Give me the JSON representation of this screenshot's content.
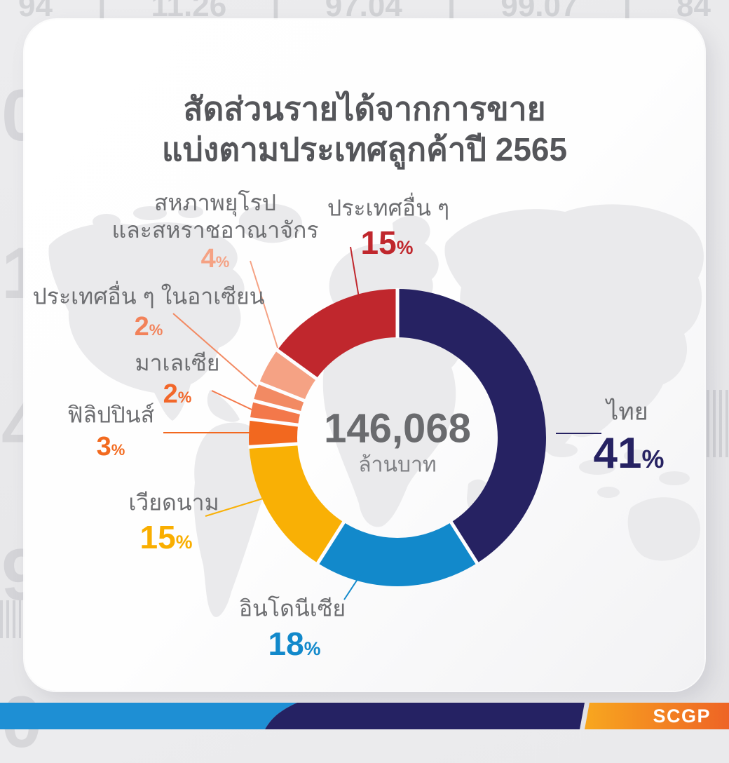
{
  "title": {
    "lines": [
      "สัดส่วนรายได้จากการขาย",
      "แบ่งตามประเทศลูกค้าปี 2565"
    ]
  },
  "center": {
    "value": "146,068",
    "unit": "ล้านบาท"
  },
  "chart_data": {
    "type": "pie",
    "donut": true,
    "title": "สัดส่วนรายได้จากการขาย แบ่งตามประเทศลูกค้าปี 2565",
    "center_label": {
      "value": "146,068",
      "unit": "ล้านบาท"
    },
    "start_angle_deg": 0,
    "direction": "clockwise",
    "categories": [
      "ไทย",
      "อินโดนีเซีย",
      "เวียดนาม",
      "ฟิลิปปินส์",
      "มาเลเซีย",
      "ประเทศอื่น ๆ ในอาเซียน",
      "สหภาพยุโรปและสหราชอาณาจักร",
      "ประเทศอื่น ๆ"
    ],
    "values": [
      41,
      18,
      15,
      3,
      2,
      2,
      4,
      15
    ],
    "unit": "%",
    "colors": [
      "#262262",
      "#1289cb",
      "#f9b005",
      "#f2681f",
      "#f3784a",
      "#f28a63",
      "#f5a284",
      "#c0272d"
    ]
  },
  "labels": [
    {
      "id": "thailand",
      "name_lines": [
        "ไทย"
      ],
      "pct": "41",
      "pct_color": "#262262"
    },
    {
      "id": "indonesia",
      "name_lines": [
        "อินโดนีเซีย"
      ],
      "pct": "18",
      "pct_color": "#1289cb"
    },
    {
      "id": "vietnam",
      "name_lines": [
        "เวียดนาม"
      ],
      "pct": "15",
      "pct_color": "#f9ae00"
    },
    {
      "id": "philippines",
      "name_lines": [
        "ฟิลิปปินส์"
      ],
      "pct": "3",
      "pct_color": "#f26a1f"
    },
    {
      "id": "malaysia",
      "name_lines": [
        "มาเลเซีย"
      ],
      "pct": "2",
      "pct_color": "#f2672a"
    },
    {
      "id": "other-asean",
      "name_lines": [
        "ประเทศอื่น ๆ ในอาเซียน"
      ],
      "pct": "2",
      "pct_color": "#f2825a"
    },
    {
      "id": "eu-uk",
      "name_lines": [
        "สหภาพยุโรป",
        "และสหราชอาณาจักร"
      ],
      "pct": "4",
      "pct_color": "#f5a284"
    },
    {
      "id": "other-countries",
      "name_lines": [
        "ประเทศอื่น ๆ"
      ],
      "pct": "15",
      "pct_color": "#c0272d"
    }
  ],
  "footer": {
    "logo": "SCGP",
    "stripe_colors": {
      "blue": "#1e8fd4",
      "navy": "#252263",
      "gold_from": "#f8a71f",
      "gold_to": "#ee6425"
    }
  },
  "decor": {
    "top_ticker": [
      "94",
      "11.26",
      "97.04",
      "99.07",
      "84"
    ],
    "left_digits": [
      "0",
      "1",
      "4",
      "9",
      "0"
    ]
  }
}
